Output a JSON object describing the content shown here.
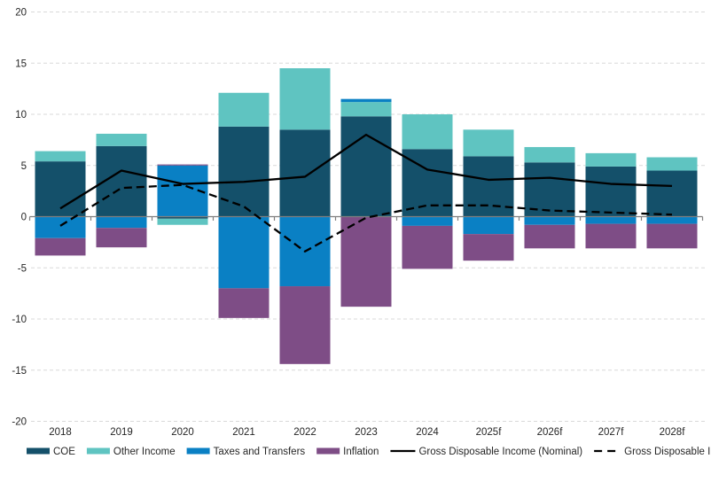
{
  "chart_data": {
    "type": "bar",
    "subtype": "stacked-bar-with-lines",
    "title": "",
    "categories": [
      "2018",
      "2019",
      "2020",
      "2021",
      "2022",
      "2023",
      "2024",
      "2025f",
      "2026f",
      "2027f",
      "2028f"
    ],
    "bar_series": [
      {
        "name": "COE",
        "color": "#14506a",
        "values": [
          5.4,
          6.9,
          -0.2,
          8.8,
          8.5,
          9.8,
          6.6,
          5.9,
          5.3,
          4.9,
          4.5
        ]
      },
      {
        "name": "Other Income",
        "color": "#5fc4c1",
        "values": [
          1.0,
          1.2,
          -0.6,
          3.3,
          6.0,
          1.4,
          3.4,
          2.6,
          1.5,
          1.3,
          1.3
        ]
      },
      {
        "name": "Taxes and Transfers",
        "color": "#0a80c4",
        "values": [
          -2.1,
          -1.1,
          5.0,
          -7.0,
          -6.8,
          0.3,
          -0.9,
          -1.7,
          -0.8,
          -0.7,
          -0.7
        ]
      },
      {
        "name": "Inflation",
        "color": "#7e4d86",
        "values": [
          -1.7,
          -1.9,
          0.1,
          -2.9,
          -7.6,
          -8.8,
          -4.2,
          -2.6,
          -2.3,
          -2.4,
          -2.4
        ]
      }
    ],
    "line_series": [
      {
        "name": "Gross Disposable Income (Nominal)",
        "style": "solid",
        "color": "#000000",
        "values": [
          0.8,
          4.5,
          3.2,
          3.4,
          3.9,
          8.0,
          4.6,
          3.6,
          3.8,
          3.2,
          3.0
        ]
      },
      {
        "name": "Gross Disposable Income (Real)",
        "style": "dashed",
        "color": "#000000",
        "values": [
          -0.9,
          2.8,
          3.1,
          1.0,
          -3.4,
          -0.1,
          1.1,
          1.1,
          0.6,
          0.4,
          0.2
        ]
      }
    ],
    "ylim": [
      -20,
      20
    ],
    "ytick_step": 5,
    "ytick_labels": [
      "20",
      "15",
      "10",
      "5",
      "0",
      "-5",
      "-10",
      "-15",
      "-20"
    ],
    "grid": "horizontal-dashed",
    "legend_position": "bottom",
    "colors": {
      "gridline": "#d9d9d9",
      "zero_axis": "#7f7f7f",
      "axis_text": "#262626",
      "background": "#ffffff"
    }
  }
}
